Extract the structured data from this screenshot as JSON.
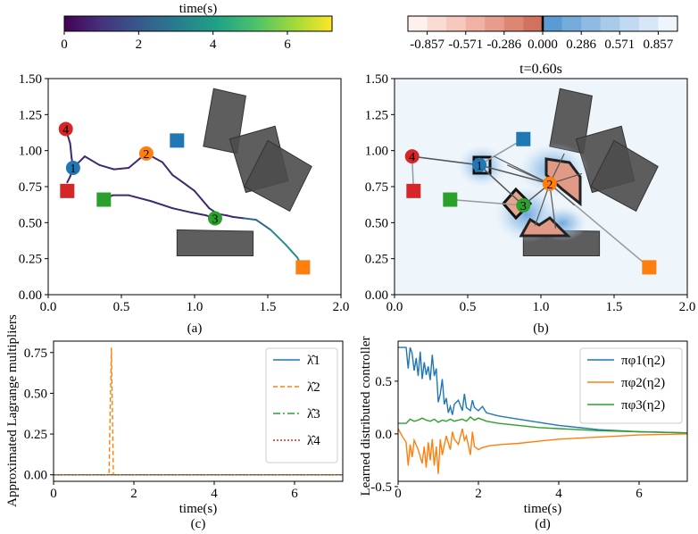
{
  "chart_data": [
    {
      "type": "colorbar",
      "label": "time(s)",
      "colormap": "viridis",
      "range": [
        0,
        7.2
      ],
      "ticks": [
        "0",
        "2",
        "4",
        "6"
      ]
    },
    {
      "type": "colorbar",
      "colormap": "red-white-blue (diverging)",
      "range": [
        -1.0,
        1.0
      ],
      "ticks": [
        "-0.857",
        "-0.571",
        "-0.286",
        "0.000",
        "0.286",
        "0.571",
        "0.857"
      ],
      "levels": 14
    },
    {
      "type": "scatter",
      "panel_label": "(a)",
      "xlim": [
        0,
        2.0
      ],
      "ylim": [
        0,
        1.5
      ],
      "xticks": [
        "0.0",
        "0.5",
        "1.0",
        "1.5",
        "2.0"
      ],
      "yticks": [
        "0.00",
        "0.25",
        "0.50",
        "0.75",
        "1.00",
        "1.25",
        "1.50"
      ],
      "agents": [
        {
          "id": "1",
          "x": 0.17,
          "y": 0.88,
          "color": "#1f77b4"
        },
        {
          "id": "2",
          "x": 0.67,
          "y": 0.98,
          "color": "#ff7f0e"
        },
        {
          "id": "3",
          "x": 1.14,
          "y": 0.53,
          "color": "#2ca02c"
        },
        {
          "id": "4",
          "x": 0.12,
          "y": 1.15,
          "color": "#d62728"
        }
      ],
      "goals": [
        {
          "x": 0.88,
          "y": 1.07,
          "color": "#1f77b4"
        },
        {
          "x": 1.74,
          "y": 0.19,
          "color": "#ff7f0e"
        },
        {
          "x": 0.38,
          "y": 0.66,
          "color": "#2ca02c"
        },
        {
          "x": 0.13,
          "y": 0.72,
          "color": "#d62728"
        }
      ],
      "trajectories": [
        {
          "agent": "1",
          "points": [
            [
              0.12,
              1.15
            ],
            [
              0.15,
              1.05
            ],
            [
              0.16,
              0.95
            ],
            [
              0.17,
              0.88
            ],
            [
              0.15,
              0.82
            ],
            [
              0.13,
              0.78
            ]
          ]
        },
        {
          "agent": "2",
          "points": [
            [
              0.17,
              0.88
            ],
            [
              0.25,
              0.96
            ],
            [
              0.35,
              0.9
            ],
            [
              0.45,
              0.87
            ],
            [
              0.55,
              0.88
            ],
            [
              0.62,
              0.94
            ],
            [
              0.67,
              0.98
            ]
          ]
        },
        {
          "agent": "2",
          "points": [
            [
              0.67,
              0.98
            ],
            [
              0.78,
              0.92
            ],
            [
              0.85,
              0.83
            ],
            [
              0.92,
              0.78
            ],
            [
              1.0,
              0.72
            ],
            [
              1.05,
              0.66
            ],
            [
              1.1,
              0.6
            ],
            [
              1.16,
              0.56
            ],
            [
              1.22,
              0.55
            ],
            [
              1.26,
              0.54
            ],
            [
              1.34,
              0.53
            ],
            [
              1.42,
              0.52
            ],
            [
              1.52,
              0.45
            ],
            [
              1.62,
              0.35
            ],
            [
              1.7,
              0.26
            ],
            [
              1.74,
              0.19
            ]
          ]
        },
        {
          "agent": "3",
          "points": [
            [
              0.38,
              0.66
            ],
            [
              0.44,
              0.69
            ],
            [
              0.55,
              0.69
            ],
            [
              0.7,
              0.65
            ],
            [
              0.85,
              0.6
            ],
            [
              0.98,
              0.57
            ],
            [
              1.08,
              0.55
            ],
            [
              1.14,
              0.53
            ]
          ]
        }
      ],
      "obstacles": [
        {
          "corners": [
            [
              1.13,
              1.43
            ],
            [
              1.35,
              1.38
            ],
            [
              1.29,
              0.98
            ],
            [
              1.06,
              1.03
            ]
          ]
        },
        {
          "corners": [
            [
              1.24,
              1.08
            ],
            [
              1.55,
              1.17
            ],
            [
              1.64,
              0.79
            ],
            [
              1.35,
              0.71
            ]
          ]
        },
        {
          "corners": [
            [
              1.5,
              1.07
            ],
            [
              1.34,
              0.75
            ],
            [
              1.65,
              0.58
            ],
            [
              1.8,
              0.89
            ]
          ]
        },
        {
          "corners": [
            [
              0.88,
              0.45
            ],
            [
              1.4,
              0.44
            ],
            [
              1.4,
              0.27
            ],
            [
              0.88,
              0.27
            ]
          ]
        }
      ]
    },
    {
      "type": "scatter",
      "panel_label": "(b)",
      "title": "t=0.60s",
      "xlim": [
        0,
        2.0
      ],
      "ylim": [
        0,
        1.5
      ],
      "xticks": [
        "0.0",
        "0.5",
        "1.0",
        "1.5",
        "2.0"
      ],
      "yticks": [
        "0.00",
        "0.25",
        "0.50",
        "0.75",
        "1.00",
        "1.25",
        "1.50"
      ],
      "agents": [
        {
          "id": "1",
          "x": 0.58,
          "y": 0.9,
          "color": "#1f77b4"
        },
        {
          "id": "2",
          "x": 1.06,
          "y": 0.77,
          "color": "#ff7f0e"
        },
        {
          "id": "3",
          "x": 0.88,
          "y": 0.62,
          "color": "#2ca02c"
        },
        {
          "id": "4",
          "x": 0.12,
          "y": 0.96,
          "color": "#d62728"
        }
      ],
      "goals": [
        {
          "x": 0.88,
          "y": 1.08,
          "color": "#1f77b4"
        },
        {
          "x": 1.74,
          "y": 0.19,
          "color": "#ff7f0e"
        },
        {
          "x": 0.38,
          "y": 0.66,
          "color": "#2ca02c"
        },
        {
          "x": 0.13,
          "y": 0.72,
          "color": "#d62728"
        }
      ]
    },
    {
      "type": "line",
      "panel_label": "(c)",
      "xlabel": "time(s)",
      "ylabel": "Approximated Lagrange multipliers",
      "xlim": [
        0,
        7.2
      ],
      "ylim": [
        -0.04,
        0.82
      ],
      "xticks": [
        "0",
        "2",
        "4",
        "6"
      ],
      "yticks": [
        "0.00",
        "0.25",
        "0.50",
        "0.75"
      ],
      "legend": "top-right",
      "series": [
        {
          "name": "λ̂1",
          "color": "#1f77b4",
          "dash": "solid",
          "points": [
            [
              0,
              0
            ],
            [
              7.2,
              0
            ]
          ]
        },
        {
          "name": "λ̂2",
          "color": "#ff7f0e",
          "dash": "dashed",
          "points": [
            [
              0,
              0
            ],
            [
              1.38,
              0
            ],
            [
              1.44,
              0.78
            ],
            [
              1.49,
              0
            ],
            [
              7.2,
              0
            ]
          ]
        },
        {
          "name": "λ̂3",
          "color": "#2ca02c",
          "dash": "dashdot",
          "points": [
            [
              0,
              0
            ],
            [
              7.2,
              0
            ]
          ]
        },
        {
          "name": "λ̂4",
          "color": "#d62728",
          "dash": "dotted",
          "points": [
            [
              0,
              0
            ],
            [
              7.2,
              0
            ]
          ]
        }
      ]
    },
    {
      "type": "line",
      "panel_label": "(d)",
      "xlabel": "time(s)",
      "ylabel": "Learned distributed controller",
      "xlim": [
        0,
        7.2
      ],
      "ylim": [
        -0.45,
        0.88
      ],
      "xticks": [
        "0",
        "2",
        "4",
        "6"
      ],
      "yticks": [
        "-0.5",
        "0.0",
        "0.5"
      ],
      "legend": "top-right",
      "series": [
        {
          "name": "πφ1(η2)",
          "color": "#1f77b4",
          "points": [
            [
              0,
              0.82
            ],
            [
              0.2,
              0.82
            ],
            [
              0.25,
              0.62
            ],
            [
              0.3,
              0.82
            ],
            [
              0.35,
              0.76
            ],
            [
              0.4,
              0.6
            ],
            [
              0.45,
              0.72
            ],
            [
              0.5,
              0.55
            ],
            [
              0.55,
              0.78
            ],
            [
              0.6,
              0.52
            ],
            [
              0.65,
              0.68
            ],
            [
              0.7,
              0.56
            ],
            [
              0.75,
              0.64
            ],
            [
              0.8,
              0.51
            ],
            [
              0.85,
              0.75
            ],
            [
              0.9,
              0.55
            ],
            [
              0.95,
              0.62
            ],
            [
              1.0,
              0.3
            ],
            [
              1.05,
              0.38
            ],
            [
              1.1,
              0.52
            ],
            [
              1.15,
              0.28
            ],
            [
              1.2,
              0.34
            ],
            [
              1.25,
              0.2
            ],
            [
              1.3,
              0.26
            ],
            [
              1.35,
              0.18
            ],
            [
              1.4,
              0.28
            ],
            [
              1.5,
              0.32
            ],
            [
              1.6,
              0.22
            ],
            [
              1.65,
              0.38
            ],
            [
              1.7,
              0.25
            ],
            [
              1.8,
              0.22
            ],
            [
              1.85,
              0.32
            ],
            [
              1.9,
              0.25
            ],
            [
              2.0,
              0.22
            ],
            [
              2.1,
              0.26
            ],
            [
              2.2,
              0.2
            ],
            [
              2.5,
              0.17
            ],
            [
              3.0,
              0.14
            ],
            [
              3.5,
              0.11
            ],
            [
              4.0,
              0.08
            ],
            [
              5.0,
              0.04
            ],
            [
              6.0,
              0.02
            ],
            [
              7.2,
              0.01
            ]
          ]
        },
        {
          "name": "πφ2(η2)",
          "color": "#ff7f0e",
          "points": [
            [
              0,
              0.05
            ],
            [
              0.1,
              -0.02
            ],
            [
              0.2,
              -0.08
            ],
            [
              0.25,
              -0.3
            ],
            [
              0.3,
              -0.1
            ],
            [
              0.35,
              -0.22
            ],
            [
              0.4,
              -0.06
            ],
            [
              0.5,
              -0.15
            ],
            [
              0.6,
              -0.28
            ],
            [
              0.65,
              -0.12
            ],
            [
              0.7,
              -0.32
            ],
            [
              0.75,
              -0.08
            ],
            [
              0.8,
              -0.25
            ],
            [
              0.85,
              -0.05
            ],
            [
              0.9,
              -0.3
            ],
            [
              0.95,
              -0.12
            ],
            [
              1.0,
              -0.38
            ],
            [
              1.05,
              -0.05
            ],
            [
              1.1,
              -0.2
            ],
            [
              1.2,
              -0.02
            ],
            [
              1.3,
              -0.15
            ],
            [
              1.35,
              0.02
            ],
            [
              1.4,
              -0.05
            ],
            [
              1.5,
              -0.1
            ],
            [
              1.6,
              0.05
            ],
            [
              1.65,
              -0.06
            ],
            [
              1.7,
              -0.02
            ],
            [
              1.8,
              -0.2
            ],
            [
              1.85,
              0.02
            ],
            [
              1.9,
              -0.12
            ],
            [
              2.0,
              -0.15
            ],
            [
              2.1,
              -0.13
            ],
            [
              2.3,
              -0.11
            ],
            [
              2.6,
              -0.1
            ],
            [
              3.0,
              -0.09
            ],
            [
              3.5,
              -0.07
            ],
            [
              4.0,
              -0.05
            ],
            [
              5.0,
              -0.03
            ],
            [
              6.0,
              -0.01
            ],
            [
              7.2,
              0.0
            ]
          ]
        },
        {
          "name": "πφ3(η2)",
          "color": "#2ca02c",
          "points": [
            [
              0,
              0.1
            ],
            [
              0.2,
              0.1
            ],
            [
              0.3,
              0.14
            ],
            [
              0.4,
              0.12
            ],
            [
              0.5,
              0.13
            ],
            [
              0.6,
              0.15
            ],
            [
              0.7,
              0.13
            ],
            [
              0.8,
              0.12
            ],
            [
              0.9,
              0.14
            ],
            [
              1.0,
              0.11
            ],
            [
              1.1,
              0.13
            ],
            [
              1.2,
              0.12
            ],
            [
              1.3,
              0.14
            ],
            [
              1.4,
              0.12
            ],
            [
              1.5,
              0.13
            ],
            [
              1.6,
              0.14
            ],
            [
              1.7,
              0.12
            ],
            [
              1.8,
              0.16
            ],
            [
              1.9,
              0.13
            ],
            [
              2.0,
              0.15
            ],
            [
              2.2,
              0.12
            ],
            [
              2.5,
              0.1
            ],
            [
              3.0,
              0.08
            ],
            [
              3.5,
              0.06
            ],
            [
              4.0,
              0.05
            ],
            [
              5.0,
              0.03
            ],
            [
              6.0,
              0.02
            ],
            [
              7.2,
              0.01
            ]
          ]
        }
      ]
    }
  ]
}
